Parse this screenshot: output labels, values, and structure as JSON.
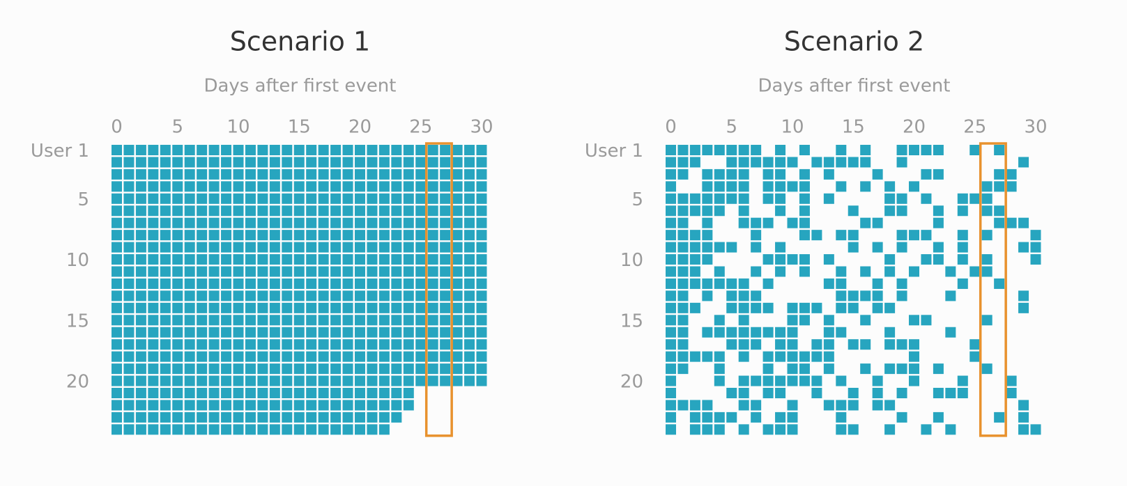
{
  "panels": [
    {
      "title": "Scenario 1",
      "subtitle": "Days after first event",
      "xticks": [
        0,
        5,
        10,
        15,
        20,
        25,
        30
      ],
      "yticks": [
        {
          "value": 1,
          "label": "User 1"
        },
        5,
        10,
        15,
        20
      ],
      "cell_color": "#27a5bf",
      "highlight_color": "#e8922e",
      "highlight": [
        26,
        27
      ],
      "days": [
        [
          0,
          1,
          2,
          3,
          4,
          5,
          6,
          7,
          8,
          9,
          10,
          11,
          12,
          13,
          14,
          15,
          16,
          17,
          18,
          19,
          20,
          21,
          22,
          23,
          24,
          25,
          26,
          27,
          28,
          29,
          30
        ],
        [
          0,
          1,
          2,
          3,
          4,
          5,
          6,
          7,
          8,
          9,
          10,
          11,
          12,
          13,
          14,
          15,
          16,
          17,
          18,
          19,
          20,
          21,
          22,
          23,
          24,
          25,
          26,
          27,
          28,
          29,
          30
        ],
        [
          0,
          1,
          2,
          3,
          4,
          5,
          6,
          7,
          8,
          9,
          10,
          11,
          12,
          13,
          14,
          15,
          16,
          17,
          18,
          19,
          20,
          21,
          22,
          23,
          24,
          25,
          26,
          27,
          28,
          29,
          30
        ],
        [
          0,
          1,
          2,
          3,
          4,
          5,
          6,
          7,
          8,
          9,
          10,
          11,
          12,
          13,
          14,
          15,
          16,
          17,
          18,
          19,
          20,
          21,
          22,
          23,
          24,
          25,
          26,
          27,
          28,
          29,
          30
        ],
        [
          0,
          1,
          2,
          3,
          4,
          5,
          6,
          7,
          8,
          9,
          10,
          11,
          12,
          13,
          14,
          15,
          16,
          17,
          18,
          19,
          20,
          21,
          22,
          23,
          24,
          25,
          26,
          27,
          28,
          29,
          30
        ],
        [
          0,
          1,
          2,
          3,
          4,
          5,
          6,
          7,
          8,
          9,
          10,
          11,
          12,
          13,
          14,
          15,
          16,
          17,
          18,
          19,
          20,
          21,
          22,
          23,
          24,
          25,
          26,
          27,
          28,
          29,
          30
        ],
        [
          0,
          1,
          2,
          3,
          4,
          5,
          6,
          7,
          8,
          9,
          10,
          11,
          12,
          13,
          14,
          15,
          16,
          17,
          18,
          19,
          20,
          21,
          22,
          23,
          24,
          25,
          26,
          27,
          28,
          29,
          30
        ],
        [
          0,
          1,
          2,
          3,
          4,
          5,
          6,
          7,
          8,
          9,
          10,
          11,
          12,
          13,
          14,
          15,
          16,
          17,
          18,
          19,
          20,
          21,
          22,
          23,
          24,
          25,
          26,
          27,
          28,
          29,
          30
        ],
        [
          0,
          1,
          2,
          3,
          4,
          5,
          6,
          7,
          8,
          9,
          10,
          11,
          12,
          13,
          14,
          15,
          16,
          17,
          18,
          19,
          20,
          21,
          22,
          23,
          24,
          25,
          26,
          27,
          28,
          29,
          30
        ],
        [
          0,
          1,
          2,
          3,
          4,
          5,
          6,
          7,
          8,
          9,
          10,
          11,
          12,
          13,
          14,
          15,
          16,
          17,
          18,
          19,
          20,
          21,
          22,
          23,
          24,
          25,
          26,
          27,
          28,
          29,
          30
        ],
        [
          0,
          1,
          2,
          3,
          4,
          5,
          6,
          7,
          8,
          9,
          10,
          11,
          12,
          13,
          14,
          15,
          16,
          17,
          18,
          19,
          20,
          21,
          22,
          23,
          24,
          25,
          26,
          27,
          28,
          29,
          30
        ],
        [
          0,
          1,
          2,
          3,
          4,
          5,
          6,
          7,
          8,
          9,
          10,
          11,
          12,
          13,
          14,
          15,
          16,
          17,
          18,
          19,
          20,
          21,
          22,
          23,
          24,
          25,
          26,
          27,
          28,
          29,
          30
        ],
        [
          0,
          1,
          2,
          3,
          4,
          5,
          6,
          7,
          8,
          9,
          10,
          11,
          12,
          13,
          14,
          15,
          16,
          17,
          18,
          19,
          20,
          21,
          22,
          23,
          24,
          25,
          26,
          27,
          28,
          29,
          30
        ],
        [
          0,
          1,
          2,
          3,
          4,
          5,
          6,
          7,
          8,
          9,
          10,
          11,
          12,
          13,
          14,
          15,
          16,
          17,
          18,
          19,
          20,
          21,
          22,
          23,
          24,
          25,
          26,
          27,
          28,
          29,
          30
        ],
        [
          0,
          1,
          2,
          3,
          4,
          5,
          6,
          7,
          8,
          9,
          10,
          11,
          12,
          13,
          14,
          15,
          16,
          17,
          18,
          19,
          20,
          21,
          22,
          23,
          24,
          25,
          26,
          27,
          28,
          29,
          30
        ],
        [
          0,
          1,
          2,
          3,
          4,
          5,
          6,
          7,
          8,
          9,
          10,
          11,
          12,
          13,
          14,
          15,
          16,
          17,
          18,
          19,
          20,
          21,
          22,
          23,
          24,
          25,
          26,
          27,
          28,
          29,
          30
        ],
        [
          0,
          1,
          2,
          3,
          4,
          5,
          6,
          7,
          8,
          9,
          10,
          11,
          12,
          13,
          14,
          15,
          16,
          17,
          18,
          19,
          20,
          21,
          22,
          23,
          24,
          25,
          26,
          27,
          28,
          29,
          30
        ],
        [
          0,
          1,
          2,
          3,
          4,
          5,
          6,
          7,
          8,
          9,
          10,
          11,
          12,
          13,
          14,
          15,
          16,
          17,
          18,
          19,
          20,
          21,
          22,
          23,
          24,
          25,
          26,
          27,
          28,
          29,
          30
        ],
        [
          0,
          1,
          2,
          3,
          4,
          5,
          6,
          7,
          8,
          9,
          10,
          11,
          12,
          13,
          14,
          15,
          16,
          17,
          18,
          19,
          20,
          21,
          22,
          23,
          24,
          25,
          26,
          27,
          28,
          29,
          30
        ],
        [
          0,
          1,
          2,
          3,
          4,
          5,
          6,
          7,
          8,
          9,
          10,
          11,
          12,
          13,
          14,
          15,
          16,
          17,
          18,
          19,
          20,
          21,
          22,
          23,
          24,
          25,
          26,
          27,
          28,
          29,
          30
        ],
        [
          0,
          1,
          2,
          3,
          4,
          5,
          6,
          7,
          8,
          9,
          10,
          11,
          12,
          13,
          14,
          15,
          16,
          17,
          18,
          19,
          20,
          21,
          22,
          23,
          24
        ],
        [
          0,
          1,
          2,
          3,
          4,
          5,
          6,
          7,
          8,
          9,
          10,
          11,
          12,
          13,
          14,
          15,
          16,
          17,
          18,
          19,
          20,
          21,
          22,
          23,
          24
        ],
        [
          0,
          1,
          2,
          3,
          4,
          5,
          6,
          7,
          8,
          9,
          10,
          11,
          12,
          13,
          14,
          15,
          16,
          17,
          18,
          19,
          20,
          21,
          22,
          23
        ],
        [
          0,
          1,
          2,
          3,
          4,
          5,
          6,
          7,
          8,
          9,
          10,
          11,
          12,
          13,
          14,
          15,
          16,
          17,
          18,
          19,
          20,
          21,
          22
        ]
      ]
    },
    {
      "title": "Scenario 2",
      "subtitle": "Days after first event",
      "xticks": [
        0,
        5,
        10,
        15,
        20,
        25,
        30
      ],
      "yticks": [
        {
          "value": 1,
          "label": "User 1"
        },
        5,
        10,
        15,
        20
      ],
      "cell_color": "#27a5bf",
      "highlight_color": "#e8922e",
      "highlight": [
        26,
        27
      ],
      "days": [
        [
          0,
          1,
          2,
          3,
          4,
          5,
          6,
          7,
          9,
          11,
          14,
          16,
          19,
          20,
          21,
          22,
          25,
          27
        ],
        [
          0,
          1,
          2,
          5,
          6,
          7,
          8,
          9,
          10,
          12,
          13,
          14,
          15,
          16,
          19,
          29
        ],
        [
          0,
          1,
          3,
          4,
          5,
          6,
          8,
          9,
          11,
          13,
          17,
          21,
          22,
          27,
          28
        ],
        [
          0,
          3,
          4,
          5,
          6,
          8,
          9,
          10,
          11,
          14,
          16,
          18,
          20,
          26,
          27,
          28
        ],
        [
          0,
          1,
          2,
          3,
          4,
          5,
          6,
          8,
          9,
          11,
          13,
          18,
          19,
          21,
          24,
          25,
          26
        ],
        [
          0,
          1,
          2,
          3,
          4,
          6,
          9,
          11,
          15,
          18,
          19,
          22,
          24,
          26,
          27
        ],
        [
          0,
          1,
          3,
          6,
          7,
          8,
          10,
          11,
          16,
          17,
          22,
          27,
          28,
          29
        ],
        [
          0,
          1,
          2,
          3,
          7,
          11,
          12,
          14,
          15,
          19,
          20,
          21,
          24,
          26,
          30
        ],
        [
          0,
          1,
          2,
          3,
          4,
          5,
          7,
          9,
          15,
          17,
          19,
          22,
          24,
          29,
          30
        ],
        [
          0,
          1,
          2,
          3,
          8,
          9,
          10,
          11,
          13,
          18,
          21,
          22,
          24,
          26,
          30
        ],
        [
          0,
          1,
          2,
          4,
          7,
          9,
          11,
          14,
          16,
          18,
          20,
          23,
          25,
          26
        ],
        [
          0,
          1,
          2,
          3,
          4,
          5,
          6,
          8,
          13,
          14,
          17,
          19,
          24,
          27
        ],
        [
          0,
          1,
          3,
          5,
          6,
          7,
          14,
          15,
          16,
          17,
          19,
          23,
          29
        ],
        [
          0,
          1,
          2,
          5,
          6,
          7,
          8,
          10,
          11,
          12,
          14,
          15,
          17,
          18,
          29
        ],
        [
          0,
          1,
          4,
          6,
          10,
          11,
          13,
          16,
          20,
          21,
          26
        ],
        [
          0,
          1,
          3,
          4,
          5,
          6,
          7,
          8,
          9,
          10,
          13,
          14,
          18,
          23
        ],
        [
          0,
          1,
          5,
          6,
          7,
          9,
          10,
          12,
          13,
          15,
          16,
          18,
          19,
          20,
          25
        ],
        [
          0,
          1,
          2,
          3,
          4,
          6,
          8,
          9,
          10,
          11,
          12,
          13,
          20,
          25
        ],
        [
          0,
          1,
          4,
          8,
          10,
          11,
          13,
          16,
          18,
          19,
          20,
          22,
          26
        ],
        [
          0,
          4,
          6,
          7,
          8,
          9,
          10,
          11,
          12,
          14,
          17,
          20,
          24,
          28
        ],
        [
          0,
          5,
          6,
          8,
          9,
          12,
          15,
          17,
          19,
          22,
          23,
          24,
          28
        ],
        [
          0,
          1,
          2,
          3,
          6,
          7,
          10,
          13,
          14,
          15,
          17,
          18,
          29
        ],
        [
          0,
          2,
          3,
          4,
          5,
          7,
          9,
          10,
          14,
          19,
          22,
          27,
          29
        ],
        [
          0,
          2,
          3,
          4,
          6,
          8,
          9,
          10,
          14,
          15,
          18,
          21,
          23,
          29,
          30
        ]
      ]
    }
  ]
}
